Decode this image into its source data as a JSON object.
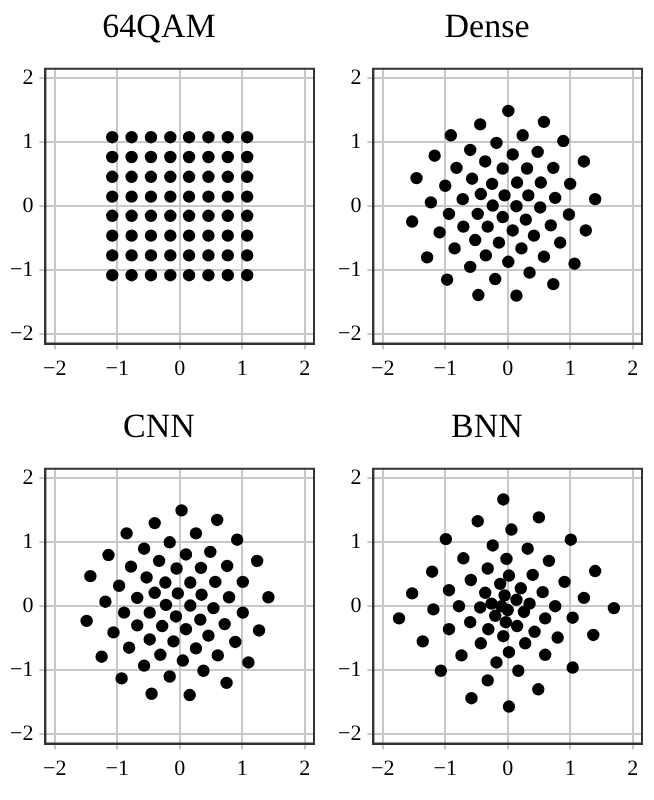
{
  "chart_data": [
    {
      "type": "scatter",
      "title": "64QAM",
      "marker": "circle",
      "grid": true,
      "xlim": [
        -2.15,
        2.15
      ],
      "ylim": [
        -2.15,
        2.15
      ],
      "xticks": [
        -2,
        -1,
        0,
        1,
        2
      ],
      "yticks": [
        -2,
        -1,
        0,
        1,
        2
      ],
      "series": [
        {
          "color": "#000000",
          "x": [
            -1.08,
            -0.77,
            -0.46,
            -0.15,
            0.15,
            0.46,
            0.77,
            1.08,
            -1.08,
            -0.77,
            -0.46,
            -0.15,
            0.15,
            0.46,
            0.77,
            1.08,
            -1.08,
            -0.77,
            -0.46,
            -0.15,
            0.15,
            0.46,
            0.77,
            1.08,
            -1.08,
            -0.77,
            -0.46,
            -0.15,
            0.15,
            0.46,
            0.77,
            1.08,
            -1.08,
            -0.77,
            -0.46,
            -0.15,
            0.15,
            0.46,
            0.77,
            1.08,
            -1.08,
            -0.77,
            -0.46,
            -0.15,
            0.15,
            0.46,
            0.77,
            1.08,
            -1.08,
            -0.77,
            -0.46,
            -0.15,
            0.15,
            0.46,
            0.77,
            1.08,
            -1.08,
            -0.77,
            -0.46,
            -0.15,
            0.15,
            0.46,
            0.77,
            1.08
          ],
          "values": [
            1.08,
            1.08,
            1.08,
            1.08,
            1.08,
            1.08,
            1.08,
            1.08,
            0.77,
            0.77,
            0.77,
            0.77,
            0.77,
            0.77,
            0.77,
            0.77,
            0.46,
            0.46,
            0.46,
            0.46,
            0.46,
            0.46,
            0.46,
            0.46,
            0.15,
            0.15,
            0.15,
            0.15,
            0.15,
            0.15,
            0.15,
            0.15,
            -0.15,
            -0.15,
            -0.15,
            -0.15,
            -0.15,
            -0.15,
            -0.15,
            -0.15,
            -0.46,
            -0.46,
            -0.46,
            -0.46,
            -0.46,
            -0.46,
            -0.46,
            -0.46,
            -0.77,
            -0.77,
            -0.77,
            -0.77,
            -0.77,
            -0.77,
            -0.77,
            -0.77,
            -1.08,
            -1.08,
            -1.08,
            -1.08,
            -1.08,
            -1.08,
            -1.08,
            -1.08
          ]
        }
      ]
    },
    {
      "type": "scatter",
      "title": "Dense",
      "marker": "circle",
      "grid": true,
      "xlim": [
        -2.15,
        2.15
      ],
      "ylim": [
        -2.15,
        2.15
      ],
      "xticks": [
        -2,
        -1,
        0,
        1,
        2
      ],
      "yticks": [
        -2,
        -1,
        0,
        1,
        2
      ],
      "series": [
        {
          "color": "#000000",
          "x": [
            0.01,
            -0.44,
            0.58,
            -0.91,
            0.24,
            0.89,
            -0.18,
            -0.6,
            0.48,
            -1.17,
            0.08,
            -0.36,
            1.22,
            -0.82,
            -0.08,
            0.31,
            0.73,
            -0.57,
            -1.46,
            0.15,
            -0.25,
            0.53,
            -1.0,
            1.0,
            -0.43,
            -0.05,
            0.33,
            -0.72,
            0.76,
            1.4,
            -1.23,
            -0.24,
            0.14,
            0.52,
            -0.94,
            -0.48,
            -0.08,
            0.29,
            0.98,
            -1.53,
            -0.71,
            -0.32,
            0.08,
            0.69,
            -1.09,
            0.42,
            1.25,
            -0.52,
            -0.14,
            0.84,
            -0.85,
            0.22,
            -0.35,
            0.58,
            -1.29,
            0.01,
            -0.6,
            1.07,
            0.35,
            -0.97,
            -0.2,
            0.73,
            -0.47,
            0.14
          ],
          "values": [
            1.49,
            1.28,
            1.32,
            1.11,
            1.11,
            1.02,
            0.99,
            0.88,
            0.85,
            0.79,
            0.81,
            0.7,
            0.7,
            0.6,
            0.59,
            0.59,
            0.6,
            0.43,
            0.44,
            0.37,
            0.35,
            0.37,
            0.32,
            0.35,
            0.19,
            0.17,
            0.17,
            0.11,
            0.13,
            0.11,
            0.06,
            0.01,
            0,
            -0.02,
            -0.12,
            -0.12,
            -0.17,
            -0.21,
            -0.13,
            -0.24,
            -0.32,
            -0.32,
            -0.38,
            -0.3,
            -0.41,
            -0.46,
            -0.38,
            -0.53,
            -0.57,
            -0.57,
            -0.66,
            -0.66,
            -0.77,
            -0.79,
            -0.8,
            -0.87,
            -0.95,
            -0.9,
            -1.04,
            -1.15,
            -1.14,
            -1.22,
            -1.39,
            -1.4
          ]
        }
      ]
    },
    {
      "type": "scatter",
      "title": "CNN",
      "marker": "circle",
      "grid": true,
      "xlim": [
        -2.15,
        2.15
      ],
      "ylim": [
        -2.15,
        2.15
      ],
      "xticks": [
        -2,
        -1,
        0,
        1,
        2
      ],
      "yticks": [
        -2,
        -1,
        0,
        1,
        2
      ],
      "series": [
        {
          "color": "#000000",
          "x": [
            0.03,
            -0.4,
            0.6,
            -0.85,
            0.26,
            0.92,
            -0.16,
            -0.57,
            0.49,
            -1.14,
            0.1,
            -0.33,
            1.24,
            -0.78,
            -0.05,
            0.34,
            0.76,
            -1.43,
            -0.53,
            0.17,
            -0.23,
            0.57,
            -0.97,
            1.01,
            -0.4,
            -0.03,
            0.35,
            -0.68,
            0.79,
            1.42,
            -1.19,
            -0.22,
            0.17,
            0.54,
            -0.89,
            -0.48,
            -0.06,
            0.33,
            1.01,
            -1.49,
            -0.68,
            -0.28,
            0.1,
            0.72,
            -1.06,
            0.46,
            1.27,
            -0.48,
            -0.1,
            0.89,
            -0.81,
            0.26,
            -0.31,
            0.61,
            -1.25,
            0.05,
            -0.57,
            1.1,
            0.38,
            -0.93,
            -0.16,
            0.75,
            -0.45,
            0.16
          ],
          "values": [
            1.5,
            1.3,
            1.35,
            1.14,
            1.14,
            1.04,
            1.0,
            0.9,
            0.85,
            0.8,
            0.81,
            0.71,
            0.71,
            0.62,
            0.59,
            0.6,
            0.63,
            0.47,
            0.45,
            0.37,
            0.37,
            0.38,
            0.32,
            0.38,
            0.21,
            0.2,
            0.18,
            0.13,
            0.14,
            0.14,
            0.07,
            0.02,
            0.01,
            -0.03,
            -0.1,
            -0.1,
            -0.16,
            -0.21,
            -0.1,
            -0.23,
            -0.3,
            -0.31,
            -0.36,
            -0.28,
            -0.41,
            -0.46,
            -0.38,
            -0.52,
            -0.55,
            -0.56,
            -0.65,
            -0.66,
            -0.76,
            -0.77,
            -0.79,
            -0.85,
            -0.93,
            -0.88,
            -1.01,
            -1.13,
            -1.1,
            -1.2,
            -1.37,
            -1.39
          ]
        }
      ]
    },
    {
      "type": "scatter",
      "title": "BNN",
      "marker": "circle",
      "grid": true,
      "xlim": [
        -2.15,
        2.15
      ],
      "ylim": [
        -2.15,
        2.15
      ],
      "xticks": [
        -2,
        -1,
        0,
        1,
        2
      ],
      "yticks": [
        -2,
        -1,
        0,
        1,
        2
      ],
      "series": [
        {
          "color": "#000000",
          "x": [
            -0.07,
            -0.48,
            0.5,
            0.06,
            -0.99,
            1.01,
            -0.24,
            0.32,
            -0.71,
            -0.02,
            0.66,
            -0.32,
            1.4,
            -1.21,
            -0.59,
            0.02,
            0.4,
            0.91,
            -0.12,
            0.21,
            -0.94,
            -0.36,
            0.56,
            -1.53,
            -0.05,
            1.22,
            0.14,
            -0.26,
            0.35,
            -0.78,
            -0.44,
            -0.1,
            0.76,
            1.7,
            0.0,
            -1.19,
            0.26,
            -0.2,
            0.6,
            1.04,
            -1.74,
            -0.03,
            -0.6,
            0.15,
            -0.94,
            -0.31,
            0.43,
            1.37,
            -0.07,
            0.8,
            -1.36,
            -0.43,
            0.28,
            0.02,
            -0.74,
            0.6,
            -0.18,
            1.04,
            0.17,
            -1.07,
            -0.32,
            0.49,
            -0.58,
            0.02
          ],
          "values": [
            1.67,
            1.33,
            1.39,
            1.2,
            1.05,
            1.04,
            0.95,
            0.9,
            0.75,
            0.74,
            0.71,
            0.59,
            0.55,
            0.54,
            0.41,
            0.48,
            0.49,
            0.38,
            0.35,
            0.28,
            0.25,
            0.21,
            0.22,
            0.2,
            0.17,
            0.13,
            0.1,
            0.04,
            0.04,
            0,
            -0.02,
            0,
            0,
            -0.03,
            -0.06,
            -0.05,
            -0.09,
            -0.15,
            -0.19,
            -0.18,
            -0.19,
            -0.25,
            -0.25,
            -0.31,
            -0.36,
            -0.36,
            -0.4,
            -0.45,
            -0.47,
            -0.49,
            -0.55,
            -0.58,
            -0.58,
            -0.72,
            -0.77,
            -0.76,
            -0.88,
            -0.96,
            -1.01,
            -1.01,
            -1.16,
            -1.3,
            -1.44,
            -1.57
          ]
        }
      ]
    }
  ]
}
